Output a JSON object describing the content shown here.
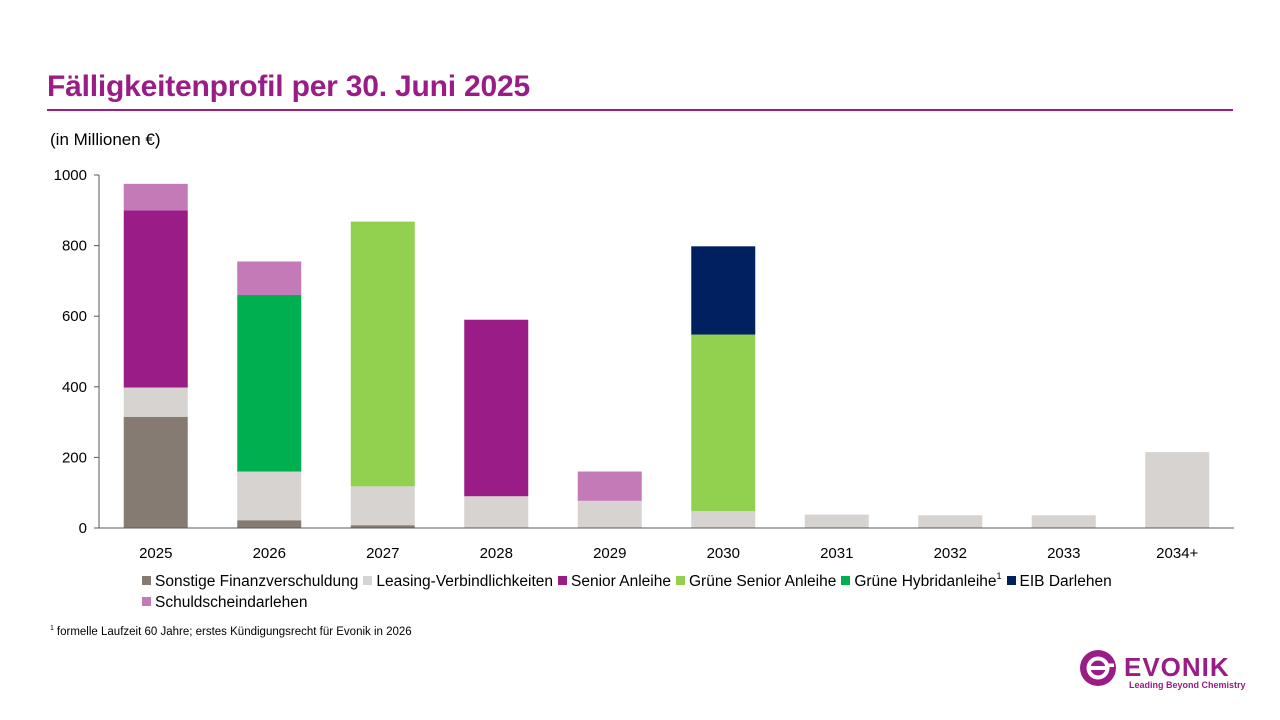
{
  "page": {
    "title": "Fälligkeitenprofil per 30. Juni 2025",
    "unit_label": "(in Millionen €)",
    "footnote_marker": "1",
    "footnote_text": "formelle Laufzeit 60 Jahre; erstes Kündigungsrecht für Evonik in 2026",
    "brand_color": "#9a1c86"
  },
  "logo": {
    "wordmark": "EVONIK",
    "tagline": "Leading Beyond Chemistry"
  },
  "chart_data": {
    "type": "bar",
    "stacked": true,
    "title": "Fälligkeitenprofil per 30. Juni 2025",
    "ylabel": "(in Millionen €)",
    "xlabel": "",
    "ylim": [
      0,
      1000
    ],
    "yticks": [
      0,
      200,
      400,
      600,
      800,
      1000
    ],
    "grid": false,
    "legend_position": "bottom",
    "categories": [
      "2025",
      "2026",
      "2027",
      "2028",
      "2029",
      "2030",
      "2031",
      "2032",
      "2033",
      "2034+"
    ],
    "series": [
      {
        "name": "Sonstige Finanzverschuldung",
        "color": "#857b73",
        "values": [
          315,
          22,
          8,
          0,
          0,
          0,
          0,
          0,
          0,
          0
        ]
      },
      {
        "name": "Leasing-Verbindlichkeiten",
        "color": "#d6d3d0",
        "values": [
          83,
          138,
          110,
          90,
          77,
          48,
          38,
          36,
          36,
          215
        ]
      },
      {
        "name": "Senior Anleihe",
        "color": "#9a1c86",
        "values": [
          502,
          0,
          0,
          500,
          0,
          0,
          0,
          0,
          0,
          0
        ]
      },
      {
        "name": "Grüne Senior Anleihe",
        "color": "#92d050",
        "values": [
          0,
          0,
          750,
          0,
          0,
          500,
          0,
          0,
          0,
          0
        ]
      },
      {
        "name": "Grüne Hybridanleihe",
        "color": "#00b050",
        "values": [
          0,
          500,
          0,
          0,
          0,
          0,
          0,
          0,
          0,
          0
        ],
        "footnote": "1"
      },
      {
        "name": "EIB Darlehen",
        "color": "#002060",
        "values": [
          0,
          0,
          0,
          0,
          0,
          250,
          0,
          0,
          0,
          0
        ]
      },
      {
        "name": "Schuldscheindarlehen",
        "color": "#c57ab8",
        "values": [
          75,
          95,
          0,
          0,
          83,
          0,
          0,
          0,
          0,
          0
        ]
      }
    ]
  }
}
